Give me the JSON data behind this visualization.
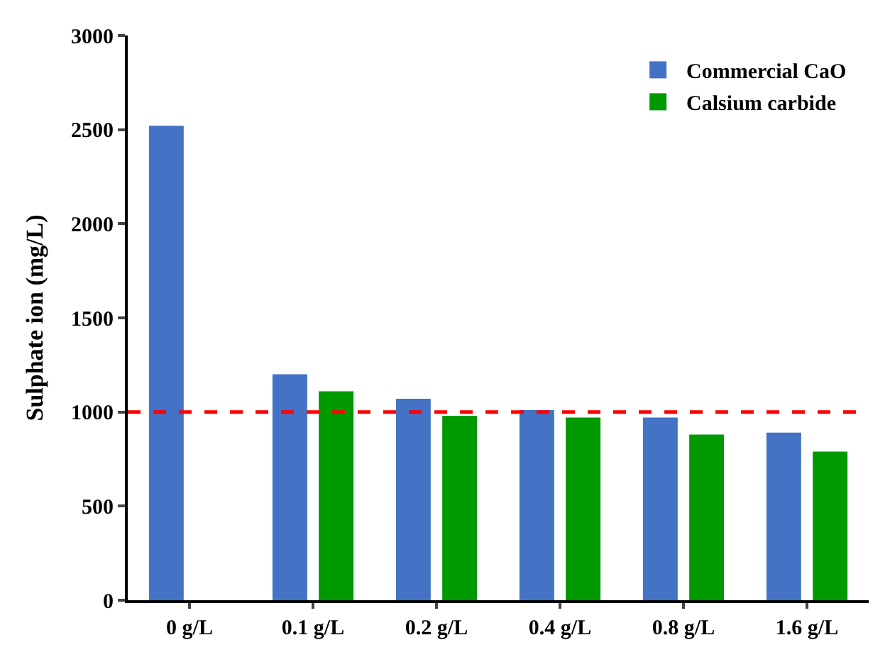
{
  "chart_data": {
    "type": "bar",
    "ylabel": "Sulphate ion (mg/L)",
    "categories": [
      "0 g/L",
      "0.1 g/L",
      "0.2 g/L",
      "0.4 g/L",
      "0.8 g/L",
      "1.6 g/L"
    ],
    "series": [
      {
        "name": "Commercial CaO",
        "color": "#4472c4",
        "values": [
          2520,
          1200,
          1070,
          1010,
          970,
          890
        ]
      },
      {
        "name": "Calsium carbide",
        "color": "#009900",
        "values": [
          null,
          1110,
          980,
          970,
          880,
          790
        ]
      }
    ],
    "ylim": [
      0,
      3000
    ],
    "yticks": [
      0,
      500,
      1000,
      1500,
      2000,
      2500,
      3000
    ],
    "ref_lines": [
      {
        "axis": "y",
        "value": 1000,
        "color": "#ff0000",
        "line_style": "dashed"
      }
    ],
    "legend": "top right"
  }
}
